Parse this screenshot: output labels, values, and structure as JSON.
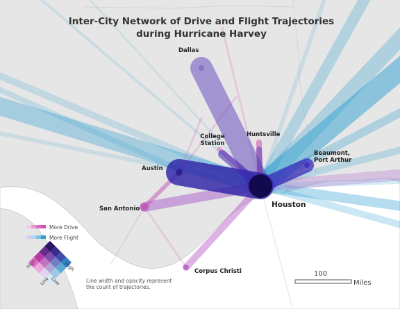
{
  "title_line1": "Inter-City Network of Drive and Flight Trajectories",
  "title_line2": "during Hurricane Harvey",
  "cities": {
    "dallas": "Dallas",
    "college_station_line1": "College",
    "college_station_line2": "Station",
    "huntsville": "Huntsville",
    "beaumont_line1": "Beaumont,",
    "beaumont_line2": "Port Arthur",
    "austin": "Austin",
    "san_antonio": "San Antonio",
    "houston": "Houston",
    "corpus_christi": "Corpus Christi"
  },
  "legend": {
    "more_drive": "More Drive",
    "more_flight": "More Flight",
    "high_left": "High",
    "low_left": "Low",
    "low_right": "Low",
    "high_right": "High",
    "note_line1": "Line width and opacity represent",
    "note_line2": "the count of trajectories."
  },
  "scale": {
    "value": "100",
    "unit": "Miles"
  },
  "colors": {
    "drive": "#d14fb3",
    "flight": "#2d9fd0",
    "mixed": "#2f1a8c",
    "land": "#e6e6e6",
    "water": "#ffffff"
  }
}
